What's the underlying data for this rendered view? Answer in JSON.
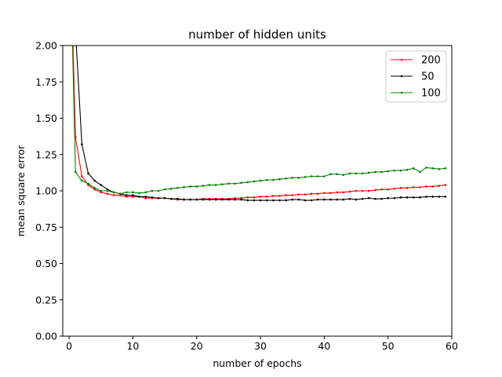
{
  "chart_data": {
    "type": "line",
    "title": "number of hidden units",
    "xlabel": "number of epochs",
    "ylabel": "mean square error",
    "xlim": [
      -1,
      60
    ],
    "ylim": [
      0,
      2.0
    ],
    "xticks": [
      0,
      10,
      20,
      30,
      40,
      50,
      60
    ],
    "yticks": [
      0.0,
      0.25,
      0.5,
      0.75,
      1.0,
      1.25,
      1.5,
      1.75,
      2.0
    ],
    "xtick_labels": [
      "0",
      "10",
      "20",
      "30",
      "40",
      "50",
      "60"
    ],
    "ytick_labels": [
      "0.00",
      "0.25",
      "0.50",
      "0.75",
      "1.00",
      "1.25",
      "1.50",
      "1.75",
      "2.00"
    ],
    "grid": false,
    "legend_position": "top-right",
    "x": [
      0,
      1,
      2,
      3,
      4,
      5,
      6,
      7,
      8,
      9,
      10,
      11,
      12,
      13,
      14,
      15,
      16,
      17,
      18,
      19,
      20,
      21,
      22,
      23,
      24,
      25,
      26,
      27,
      28,
      29,
      30,
      31,
      32,
      33,
      34,
      35,
      36,
      37,
      38,
      39,
      40,
      41,
      42,
      43,
      44,
      45,
      46,
      47,
      48,
      49,
      50,
      51,
      52,
      53,
      54,
      55,
      56,
      57,
      58,
      59
    ],
    "series": [
      {
        "name": "200",
        "color": "#ff0000",
        "values": [
          3.0,
          1.37,
          1.1,
          1.04,
          1.01,
          0.99,
          0.98,
          0.97,
          0.97,
          0.96,
          0.96,
          0.96,
          0.95,
          0.95,
          0.95,
          0.95,
          0.945,
          0.94,
          0.94,
          0.94,
          0.94,
          0.945,
          0.945,
          0.945,
          0.945,
          0.945,
          0.95,
          0.95,
          0.955,
          0.955,
          0.96,
          0.96,
          0.965,
          0.965,
          0.97,
          0.97,
          0.975,
          0.975,
          0.98,
          0.98,
          0.985,
          0.985,
          0.99,
          0.99,
          0.995,
          1.0,
          1.0,
          1.0,
          1.005,
          1.01,
          1.01,
          1.015,
          1.02,
          1.02,
          1.025,
          1.025,
          1.03,
          1.03,
          1.035,
          1.04
        ]
      },
      {
        "name": "50",
        "color": "#000000",
        "values": [
          3.0,
          2.1,
          1.32,
          1.12,
          1.07,
          1.04,
          1.01,
          0.99,
          0.98,
          0.97,
          0.97,
          0.96,
          0.96,
          0.955,
          0.95,
          0.95,
          0.945,
          0.945,
          0.94,
          0.94,
          0.94,
          0.94,
          0.94,
          0.94,
          0.94,
          0.94,
          0.94,
          0.94,
          0.935,
          0.935,
          0.935,
          0.935,
          0.935,
          0.935,
          0.935,
          0.94,
          0.94,
          0.935,
          0.935,
          0.94,
          0.94,
          0.94,
          0.94,
          0.94,
          0.945,
          0.94,
          0.945,
          0.95,
          0.945,
          0.945,
          0.95,
          0.95,
          0.955,
          0.955,
          0.955,
          0.955,
          0.96,
          0.96,
          0.96,
          0.96
        ]
      },
      {
        "name": "100",
        "color": "#008000",
        "values": [
          3.0,
          1.13,
          1.07,
          1.05,
          1.02,
          1.0,
          1.0,
          0.99,
          0.98,
          0.99,
          0.99,
          0.985,
          0.99,
          1.0,
          1.0,
          1.01,
          1.015,
          1.02,
          1.025,
          1.03,
          1.03,
          1.035,
          1.04,
          1.04,
          1.045,
          1.05,
          1.05,
          1.055,
          1.06,
          1.065,
          1.07,
          1.075,
          1.075,
          1.08,
          1.085,
          1.09,
          1.09,
          1.095,
          1.1,
          1.1,
          1.1,
          1.115,
          1.115,
          1.11,
          1.12,
          1.12,
          1.12,
          1.125,
          1.13,
          1.13,
          1.135,
          1.14,
          1.14,
          1.145,
          1.155,
          1.13,
          1.16,
          1.155,
          1.15,
          1.155
        ]
      }
    ]
  }
}
